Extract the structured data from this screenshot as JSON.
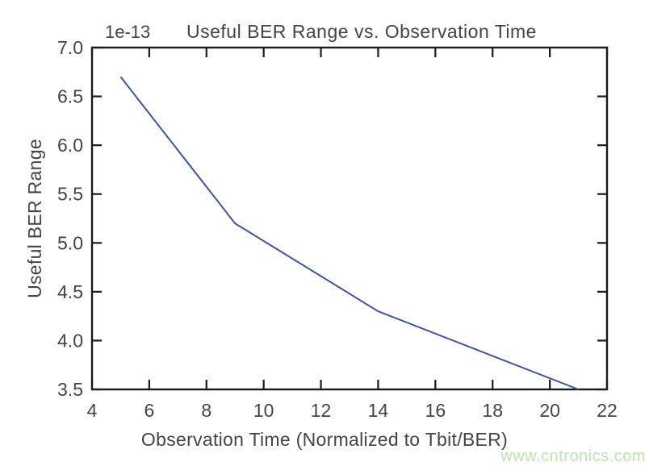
{
  "chart_data": {
    "type": "line",
    "title": "Useful BER Range vs. Observation Time",
    "xlabel": "Observation Time (Normalized to Tbit/BER)",
    "ylabel": "Useful BER Range",
    "offset_text": "1e-13",
    "y_scale": "1e-13",
    "x": [
      5,
      9,
      14,
      21
    ],
    "y": [
      6.7,
      5.2,
      4.3,
      3.5
    ],
    "xlim": [
      4,
      22
    ],
    "ylim": [
      3.5,
      7.0
    ],
    "xticks": [
      4,
      6,
      8,
      10,
      12,
      14,
      16,
      18,
      20,
      22
    ],
    "yticks": [
      3.5,
      4.0,
      4.5,
      5.0,
      5.5,
      6.0,
      6.5,
      7.0
    ],
    "xtick_labels": [
      "4",
      "6",
      "8",
      "10",
      "12",
      "14",
      "16",
      "18",
      "20",
      "22"
    ],
    "ytick_labels": [
      "3.5",
      "4.0",
      "4.5",
      "5.0",
      "5.5",
      "6.0",
      "6.5",
      "7.0"
    ],
    "grid": false,
    "legend": "none",
    "tick_direction": "in"
  },
  "watermark": {
    "text": "www.cntronics.com"
  },
  "colors": {
    "line": "#4153A7",
    "axis": "#1B1B1B",
    "text": "#444444",
    "watermark": "#BCE5B0"
  }
}
